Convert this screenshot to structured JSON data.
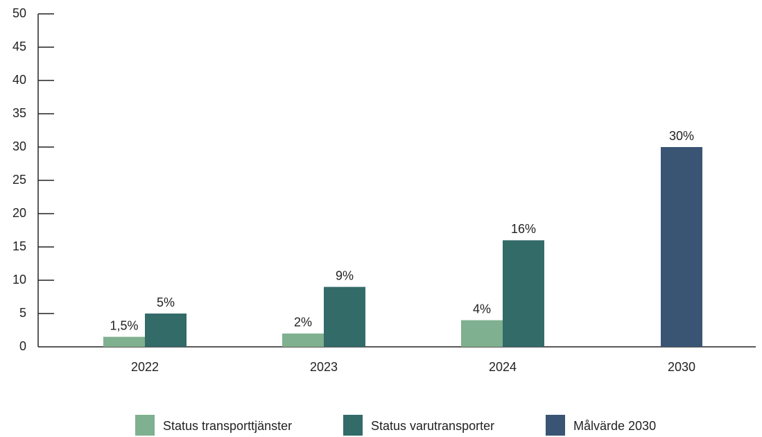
{
  "chart_data": {
    "type": "bar",
    "categories": [
      "2022",
      "2023",
      "2024",
      "2030"
    ],
    "series": [
      {
        "name": "Status transporttjänster",
        "color": "#7fb08f",
        "values": [
          1.5,
          2,
          4,
          null
        ],
        "value_labels": [
          "1,5%",
          "2%",
          "4%",
          null
        ]
      },
      {
        "name": "Status varutransporter",
        "color": "#336b69",
        "values": [
          5,
          9,
          16,
          null
        ],
        "value_labels": [
          "5%",
          "9%",
          "16%",
          null
        ]
      },
      {
        "name": "Målvärde 2030",
        "color": "#3a5574",
        "values": [
          null,
          null,
          null,
          30
        ],
        "value_labels": [
          null,
          null,
          null,
          "30%"
        ]
      }
    ],
    "ylim": [
      0,
      50
    ],
    "yticks": [
      0,
      5,
      10,
      15,
      20,
      25,
      30,
      35,
      40,
      45,
      50
    ],
    "legend": "bottom"
  }
}
